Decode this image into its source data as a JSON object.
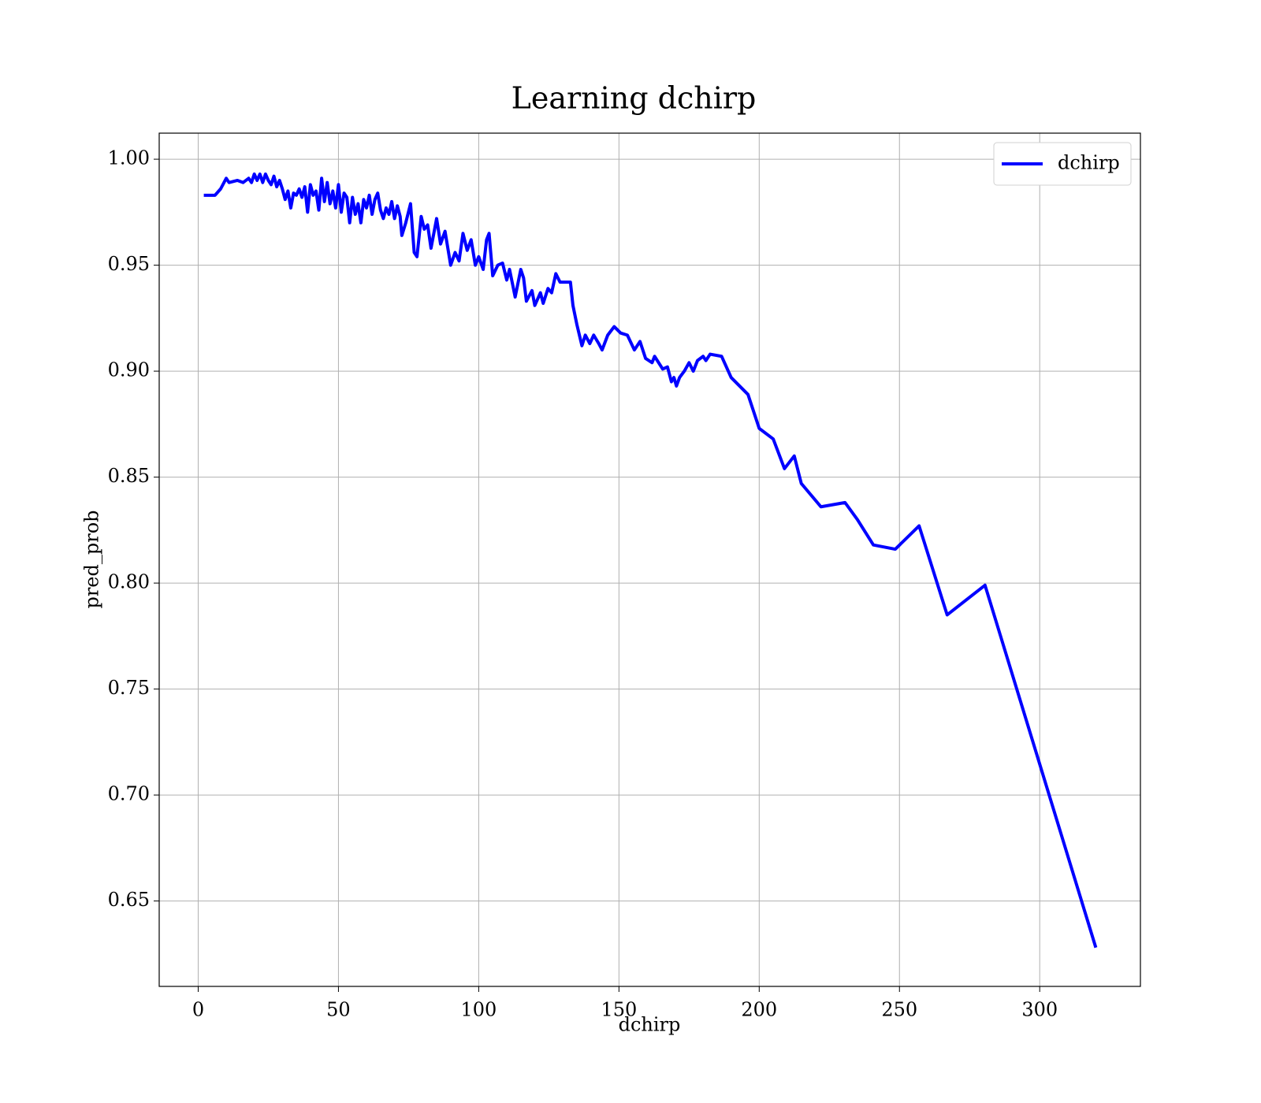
{
  "chart_data": {
    "type": "line",
    "title": "Learning dchirp",
    "x_label": "dchirp",
    "y_label": "pred_prob",
    "x": [
      2,
      6,
      8,
      10,
      11,
      14,
      16,
      18,
      19,
      20,
      21,
      22,
      23,
      24,
      25,
      26,
      27,
      28,
      29,
      30,
      31,
      32,
      33,
      34,
      35,
      36,
      37,
      38,
      39,
      40,
      41,
      42,
      43,
      44,
      45,
      46,
      47,
      48,
      49,
      50,
      51,
      52,
      53,
      54,
      55,
      56,
      57,
      58,
      59,
      60,
      61,
      62,
      63,
      64,
      65,
      66,
      67,
      68,
      69,
      70,
      71,
      72,
      72.6,
      74,
      75.7,
      77,
      78,
      79.5,
      80.6,
      81.8,
      83,
      85,
      86.4,
      88,
      90,
      91.6,
      93,
      94.4,
      95.9,
      97.3,
      98.8,
      100,
      101.6,
      102.8,
      103.7,
      105,
      106.8,
      108.5,
      110,
      111,
      113,
      115,
      116,
      117,
      119,
      120,
      122,
      123,
      124.7,
      126,
      127.5,
      129,
      131,
      132.7,
      133.6,
      135,
      136.8,
      138,
      139.6,
      141,
      142.8,
      144,
      146,
      148.3,
      150.6,
      153,
      155.5,
      157.5,
      159.5,
      161.8,
      162.7,
      165.6,
      167.3,
      168.7,
      169.6,
      170.5,
      171.6,
      173.3,
      175,
      176.5,
      178,
      180,
      181,
      182.5,
      186.6,
      190,
      196,
      200,
      205,
      209,
      212.5,
      215,
      222,
      230.6,
      235,
      240.7,
      248.5,
      257,
      267,
      280.5,
      320
    ],
    "series": [
      {
        "name": "dchirp",
        "color": "#0000ff",
        "values": [
          0.983,
          0.983,
          0.986,
          0.991,
          0.989,
          0.99,
          0.989,
          0.991,
          0.989,
          0.993,
          0.99,
          0.993,
          0.989,
          0.993,
          0.99,
          0.988,
          0.992,
          0.987,
          0.99,
          0.986,
          0.981,
          0.985,
          0.977,
          0.984,
          0.983,
          0.986,
          0.982,
          0.987,
          0.975,
          0.988,
          0.983,
          0.985,
          0.976,
          0.991,
          0.98,
          0.989,
          0.979,
          0.985,
          0.977,
          0.988,
          0.975,
          0.984,
          0.982,
          0.97,
          0.982,
          0.974,
          0.979,
          0.97,
          0.981,
          0.977,
          0.983,
          0.974,
          0.981,
          0.984,
          0.976,
          0.972,
          0.977,
          0.974,
          0.98,
          0.972,
          0.978,
          0.973,
          0.964,
          0.97,
          0.979,
          0.956,
          0.954,
          0.973,
          0.967,
          0.969,
          0.958,
          0.972,
          0.96,
          0.966,
          0.95,
          0.956,
          0.952,
          0.965,
          0.957,
          0.962,
          0.95,
          0.954,
          0.948,
          0.962,
          0.965,
          0.945,
          0.95,
          0.951,
          0.943,
          0.948,
          0.935,
          0.948,
          0.944,
          0.933,
          0.938,
          0.931,
          0.937,
          0.932,
          0.939,
          0.937,
          0.946,
          0.942,
          0.942,
          0.942,
          0.931,
          0.922,
          0.912,
          0.917,
          0.913,
          0.917,
          0.913,
          0.91,
          0.917,
          0.921,
          0.918,
          0.917,
          0.91,
          0.914,
          0.906,
          0.904,
          0.907,
          0.901,
          0.902,
          0.895,
          0.897,
          0.893,
          0.897,
          0.9,
          0.904,
          0.9,
          0.905,
          0.907,
          0.905,
          0.908,
          0.907,
          0.897,
          0.889,
          0.873,
          0.868,
          0.854,
          0.86,
          0.847,
          0.836,
          0.838,
          0.83,
          0.818,
          0.816,
          0.827,
          0.785,
          0.799,
          0.628
        ]
      }
    ],
    "xlim": [
      -13.9,
      335.9
    ],
    "ylim": [
      0.6097,
      1.0123
    ],
    "xticks": [
      0,
      50,
      100,
      150,
      200,
      250,
      300
    ],
    "yticks": [
      {
        "value": 0.65,
        "label": "0.65"
      },
      {
        "value": 0.7,
        "label": "0.70"
      },
      {
        "value": 0.75,
        "label": "0.75"
      },
      {
        "value": 0.8,
        "label": "0.80"
      },
      {
        "value": 0.85,
        "label": "0.85"
      },
      {
        "value": 0.9,
        "label": "0.90"
      },
      {
        "value": 0.95,
        "label": "0.95"
      },
      {
        "value": 1.0,
        "label": "1.00"
      }
    ],
    "grid": true,
    "legend": "upper right"
  }
}
